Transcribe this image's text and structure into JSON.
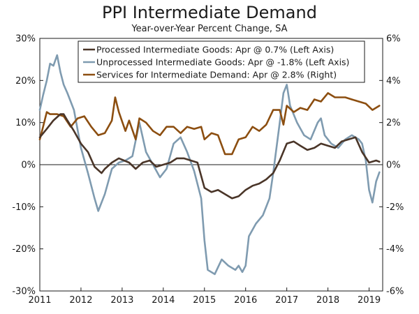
{
  "title": "PPI Intermediate Demand",
  "subtitle": "Year-over-Year Percent Change, SA",
  "colors": {
    "processed": "#4a3528",
    "unprocessed": "#7f9bb0",
    "services": "#8c4e10"
  },
  "chart_data": {
    "type": "line",
    "title": "PPI Intermediate Demand",
    "subtitle": "Year-over-Year Percent Change, SA",
    "grid": false,
    "legend_position": "top-right",
    "left_axis": {
      "range": [
        -30,
        30
      ],
      "ticks": [
        "30%",
        "20%",
        "10%",
        "0%",
        "-10%",
        "-20%",
        "-30%"
      ]
    },
    "right_axis": {
      "range": [
        -6,
        6
      ],
      "ticks": [
        "6%",
        "4%",
        "2%",
        "0%",
        "-2%",
        "-4%",
        "-6%"
      ]
    },
    "x_axis": {
      "range": [
        2011.0,
        2019.33
      ],
      "ticks": [
        "2011",
        "2012",
        "2013",
        "2014",
        "2015",
        "2016",
        "2017",
        "2018",
        "2019"
      ]
    },
    "series": [
      {
        "name": "Processed Intermediate Goods: Apr @ 0.7% (Left Axis)",
        "axis": "left",
        "color": "#4a3528",
        "points": [
          [
            2011.0,
            6.5
          ],
          [
            2011.17,
            8.5
          ],
          [
            2011.33,
            10.5
          ],
          [
            2011.5,
            12.0
          ],
          [
            2011.58,
            12.0
          ],
          [
            2011.67,
            10.5
          ],
          [
            2011.83,
            8.0
          ],
          [
            2012.0,
            5.0
          ],
          [
            2012.17,
            3.0
          ],
          [
            2012.33,
            -0.5
          ],
          [
            2012.5,
            -2.0
          ],
          [
            2012.58,
            -1.0
          ],
          [
            2012.75,
            0.5
          ],
          [
            2012.92,
            1.5
          ],
          [
            2013.17,
            0.5
          ],
          [
            2013.33,
            -1.0
          ],
          [
            2013.5,
            0.5
          ],
          [
            2013.67,
            1.0
          ],
          [
            2013.83,
            -0.5
          ],
          [
            2014.0,
            0.0
          ],
          [
            2014.17,
            0.5
          ],
          [
            2014.33,
            1.5
          ],
          [
            2014.5,
            1.5
          ],
          [
            2014.67,
            1.0
          ],
          [
            2014.83,
            0.5
          ],
          [
            2015.0,
            -5.5
          ],
          [
            2015.17,
            -6.5
          ],
          [
            2015.33,
            -6.0
          ],
          [
            2015.5,
            -7.0
          ],
          [
            2015.67,
            -8.0
          ],
          [
            2015.83,
            -7.5
          ],
          [
            2016.0,
            -6.0
          ],
          [
            2016.17,
            -5.0
          ],
          [
            2016.33,
            -4.5
          ],
          [
            2016.5,
            -3.5
          ],
          [
            2016.67,
            -2.0
          ],
          [
            2016.83,
            1.0
          ],
          [
            2017.0,
            5.0
          ],
          [
            2017.17,
            5.5
          ],
          [
            2017.33,
            4.5
          ],
          [
            2017.5,
            3.5
          ],
          [
            2017.67,
            4.0
          ],
          [
            2017.83,
            5.0
          ],
          [
            2018.0,
            4.5
          ],
          [
            2018.17,
            4.0
          ],
          [
            2018.33,
            5.5
          ],
          [
            2018.5,
            6.0
          ],
          [
            2018.67,
            6.5
          ],
          [
            2018.83,
            3.0
          ],
          [
            2019.0,
            0.5
          ],
          [
            2019.17,
            1.0
          ],
          [
            2019.25,
            0.7
          ]
        ]
      },
      {
        "name": "Unprocessed Intermediate Goods: Apr @ -1.8% (Left Axis)",
        "axis": "left",
        "color": "#7f9bb0",
        "points": [
          [
            2011.0,
            13.0
          ],
          [
            2011.08,
            16.5
          ],
          [
            2011.17,
            20.0
          ],
          [
            2011.25,
            24.0
          ],
          [
            2011.33,
            23.5
          ],
          [
            2011.42,
            26.0
          ],
          [
            2011.5,
            22.0
          ],
          [
            2011.58,
            19.0
          ],
          [
            2011.67,
            17.0
          ],
          [
            2011.83,
            13.0
          ],
          [
            2012.0,
            4.0
          ],
          [
            2012.17,
            -2.0
          ],
          [
            2012.33,
            -8.0
          ],
          [
            2012.42,
            -11.0
          ],
          [
            2012.58,
            -7.0
          ],
          [
            2012.75,
            -1.0
          ],
          [
            2012.92,
            0.5
          ],
          [
            2013.08,
            1.0
          ],
          [
            2013.25,
            2.0
          ],
          [
            2013.42,
            10.0
          ],
          [
            2013.58,
            3.0
          ],
          [
            2013.75,
            0.0
          ],
          [
            2013.92,
            -3.0
          ],
          [
            2014.08,
            -1.0
          ],
          [
            2014.25,
            5.0
          ],
          [
            2014.42,
            6.5
          ],
          [
            2014.58,
            3.0
          ],
          [
            2014.75,
            -1.5
          ],
          [
            2014.92,
            -8.0
          ],
          [
            2015.0,
            -18.0
          ],
          [
            2015.08,
            -25.0
          ],
          [
            2015.25,
            -26.0
          ],
          [
            2015.42,
            -22.5
          ],
          [
            2015.58,
            -24.0
          ],
          [
            2015.75,
            -25.0
          ],
          [
            2015.83,
            -24.0
          ],
          [
            2015.92,
            -25.5
          ],
          [
            2016.0,
            -24.0
          ],
          [
            2016.08,
            -17.0
          ],
          [
            2016.25,
            -14.0
          ],
          [
            2016.42,
            -12.0
          ],
          [
            2016.58,
            -8.0
          ],
          [
            2016.67,
            -2.0
          ],
          [
            2016.83,
            10.0
          ],
          [
            2016.92,
            17.0
          ],
          [
            2017.0,
            19.0
          ],
          [
            2017.08,
            14.0
          ],
          [
            2017.25,
            10.0
          ],
          [
            2017.42,
            7.0
          ],
          [
            2017.58,
            6.0
          ],
          [
            2017.75,
            10.0
          ],
          [
            2017.83,
            11.0
          ],
          [
            2017.92,
            7.0
          ],
          [
            2018.08,
            5.0
          ],
          [
            2018.25,
            4.0
          ],
          [
            2018.42,
            6.0
          ],
          [
            2018.58,
            7.0
          ],
          [
            2018.75,
            6.0
          ],
          [
            2018.83,
            5.0
          ],
          [
            2018.92,
            1.0
          ],
          [
            2019.0,
            -6.0
          ],
          [
            2019.08,
            -9.0
          ],
          [
            2019.17,
            -4.0
          ],
          [
            2019.25,
            -1.8
          ]
        ]
      },
      {
        "name": "Services for Intermediate Demand: Apr @ 2.8% (Right)",
        "axis": "right",
        "color": "#8c4e10",
        "points": [
          [
            2011.0,
            1.2
          ],
          [
            2011.08,
            1.8
          ],
          [
            2011.17,
            2.5
          ],
          [
            2011.25,
            2.4
          ],
          [
            2011.42,
            2.4
          ],
          [
            2011.58,
            2.3
          ],
          [
            2011.75,
            1.8
          ],
          [
            2011.92,
            2.2
          ],
          [
            2012.08,
            2.3
          ],
          [
            2012.25,
            1.8
          ],
          [
            2012.42,
            1.4
          ],
          [
            2012.58,
            1.5
          ],
          [
            2012.75,
            2.1
          ],
          [
            2012.83,
            3.2
          ],
          [
            2012.92,
            2.5
          ],
          [
            2013.08,
            1.6
          ],
          [
            2013.17,
            2.1
          ],
          [
            2013.33,
            1.2
          ],
          [
            2013.42,
            2.2
          ],
          [
            2013.58,
            2.0
          ],
          [
            2013.75,
            1.6
          ],
          [
            2013.92,
            1.4
          ],
          [
            2014.08,
            1.8
          ],
          [
            2014.25,
            1.8
          ],
          [
            2014.42,
            1.5
          ],
          [
            2014.58,
            1.8
          ],
          [
            2014.75,
            1.7
          ],
          [
            2014.92,
            1.8
          ],
          [
            2015.0,
            1.2
          ],
          [
            2015.17,
            1.5
          ],
          [
            2015.33,
            1.4
          ],
          [
            2015.5,
            0.5
          ],
          [
            2015.67,
            0.5
          ],
          [
            2015.83,
            1.2
          ],
          [
            2016.0,
            1.3
          ],
          [
            2016.17,
            1.8
          ],
          [
            2016.33,
            1.6
          ],
          [
            2016.5,
            1.9
          ],
          [
            2016.67,
            2.6
          ],
          [
            2016.83,
            2.6
          ],
          [
            2016.92,
            1.9
          ],
          [
            2017.0,
            2.8
          ],
          [
            2017.17,
            2.5
          ],
          [
            2017.33,
            2.7
          ],
          [
            2017.5,
            2.6
          ],
          [
            2017.67,
            3.1
          ],
          [
            2017.83,
            3.0
          ],
          [
            2018.0,
            3.4
          ],
          [
            2018.17,
            3.2
          ],
          [
            2018.42,
            3.2
          ],
          [
            2018.58,
            3.1
          ],
          [
            2018.75,
            3.0
          ],
          [
            2018.92,
            2.9
          ],
          [
            2019.08,
            2.6
          ],
          [
            2019.25,
            2.8
          ]
        ]
      }
    ]
  }
}
